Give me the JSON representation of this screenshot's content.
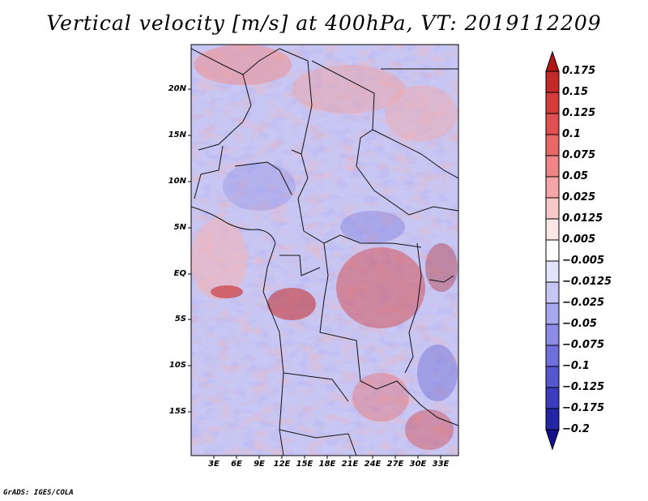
{
  "title": "Vertical velocity [m/s] at 400hPa, VT: 2019112209",
  "map": {
    "latitude_labels": [
      "20N",
      "15N",
      "10N",
      "5N",
      "EQ",
      "5S",
      "10S",
      "15S"
    ],
    "longitude_labels": [
      "3E",
      "6E",
      "9E",
      "12E",
      "15E",
      "18E",
      "21E",
      "24E",
      "27E",
      "30E",
      "33E"
    ]
  },
  "colorbar": {
    "labels": [
      "0.175",
      "0.15",
      "0.125",
      "0.1",
      "0.075",
      "0.05",
      "0.025",
      "0.0125",
      "0.005",
      "−0.005",
      "−0.0125",
      "−0.025",
      "−0.05",
      "−0.075",
      "−0.1",
      "−0.125",
      "−0.175",
      "−0.2"
    ],
    "colors": [
      "#b01818",
      "#c42a2a",
      "#d43c3c",
      "#e05050",
      "#e86868",
      "#ef8585",
      "#f4a5a5",
      "#f8c8c8",
      "#fbe6e6",
      "#ffffff",
      "#e2e2fb",
      "#c6c6f5",
      "#a8a8ee",
      "#8c8ce6",
      "#7070dc",
      "#5656ce",
      "#3c3cbe",
      "#2424a6",
      "#12128c"
    ]
  },
  "credit": "GrADS: IGES/COLA"
}
